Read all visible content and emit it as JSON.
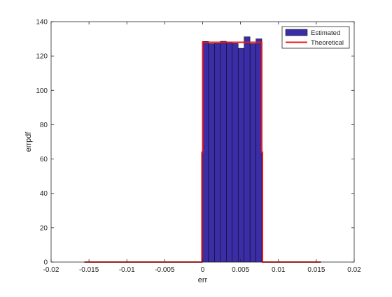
{
  "chart_data": {
    "type": "bar",
    "title": "",
    "xlabel": "err",
    "ylabel": "errpdf",
    "xlim": [
      -0.02,
      0.02
    ],
    "ylim": [
      0,
      140
    ],
    "xticks": [
      -0.02,
      -0.015,
      -0.01,
      -0.005,
      0,
      0.005,
      0.01,
      0.015,
      0.02
    ],
    "xtick_labels": [
      "-0.02",
      "-0.015",
      "-0.01",
      "-0.005",
      "0",
      "0.005",
      "0.01",
      "0.015",
      "0.02"
    ],
    "yticks": [
      0,
      20,
      40,
      60,
      80,
      100,
      120,
      140
    ],
    "ytick_labels": [
      "0",
      "20",
      "40",
      "60",
      "80",
      "100",
      "120",
      "140"
    ],
    "grid": false,
    "legend_position": "top-right",
    "series": [
      {
        "name": "Estimated",
        "kind": "histogram",
        "color": "#3b2da6",
        "edge_color": "#000000",
        "bin_edges": [
          0,
          0.0007813,
          0.0015625,
          0.0023438,
          0.003125,
          0.0039063,
          0.0046875,
          0.0054688,
          0.00625,
          0.0070313,
          0.0078125
        ],
        "values": [
          128.5,
          127.2,
          127.3,
          128.6,
          127.9,
          127.3,
          124.5,
          131.2,
          127.2,
          130.0
        ]
      },
      {
        "name": "Theoretical",
        "kind": "line",
        "color": "#e81919",
        "x": [
          -0.0156,
          -0.0001,
          -0.0001,
          0,
          0,
          0.0078,
          0.0078,
          0.0079,
          0.0079,
          0.0156
        ],
        "y": [
          0,
          0,
          64,
          64,
          128,
          128,
          64,
          64,
          0,
          0
        ]
      }
    ]
  }
}
